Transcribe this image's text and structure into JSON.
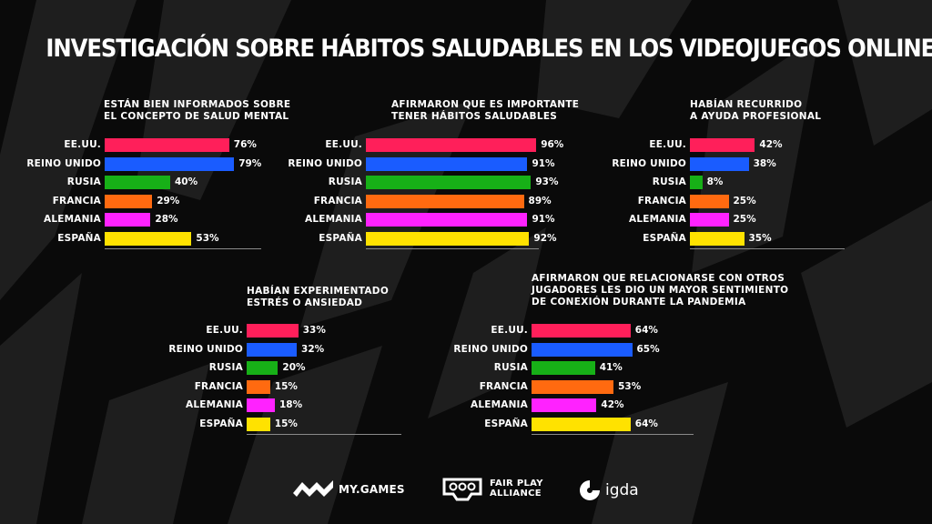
{
  "title": "INVESTIGACIÓN SOBRE HÁBITOS SALUDABLES EN LOS VIDEOJUEGOS ONLINE",
  "colors": {
    "usa": "#ff1f5a",
    "uk": "#1a5cff",
    "russia": "#17b017",
    "france": "#ff6a10",
    "germany": "#ff22ff",
    "spain": "#ffe200",
    "background": "#0a0a0a"
  },
  "chart_data": [
    {
      "type": "bar",
      "title": "ESTÁN BIEN INFORMADOS SOBRE\nEL CONCEPTO DE SALUD MENTAL",
      "categories": [
        "EE.UU.",
        "REINO UNIDO",
        "RUSIA",
        "FRANCIA",
        "ALEMANIA",
        "ESPAÑA"
      ],
      "values": [
        76,
        79,
        40,
        29,
        28,
        53
      ],
      "labels": [
        "76%",
        "79%",
        "40%",
        "29%",
        "28%",
        "53%"
      ],
      "orientation": "horizontal"
    },
    {
      "type": "bar",
      "title": "AFIRMARON QUE ES IMPORTANTE\nTENER HÁBITOS SALUDABLES",
      "categories": [
        "EE.UU.",
        "REINO UNIDO",
        "RUSIA",
        "FRANCIA",
        "ALEMANIA",
        "ESPAÑA"
      ],
      "values": [
        96,
        91,
        93,
        89,
        91,
        92
      ],
      "labels": [
        "96%",
        "91%",
        "93%",
        "89%",
        "91%",
        "92%"
      ],
      "orientation": "horizontal"
    },
    {
      "type": "bar",
      "title": "HABÍAN RECURRIDO\nA AYUDA PROFESIONAL",
      "categories": [
        "EE.UU.",
        "REINO UNIDO",
        "RUSIA",
        "FRANCIA",
        "ALEMANIA",
        "ESPAÑA"
      ],
      "values": [
        42,
        38,
        8,
        25,
        25,
        35
      ],
      "labels": [
        "42%",
        "38%",
        "8%",
        "25%",
        "25%",
        "35%"
      ],
      "orientation": "horizontal"
    },
    {
      "type": "bar",
      "title": "HABÍAN EXPERIMENTADO\nESTRÉS O ANSIEDAD",
      "categories": [
        "EE.UU.",
        "REINO UNIDO",
        "RUSIA",
        "FRANCIA",
        "ALEMANIA",
        "ESPAÑA"
      ],
      "values": [
        33,
        32,
        20,
        15,
        18,
        15
      ],
      "labels": [
        "33%",
        "32%",
        "20%",
        "15%",
        "18%",
        "15%"
      ],
      "orientation": "horizontal"
    },
    {
      "type": "bar",
      "title": "AFIRMARON QUE RELACIONARSE CON OTROS\nJUGADORES LES DIO UN MAYOR SENTIMIENTO\nDE CONEXIÓN DURANTE LA PANDEMIA",
      "categories": [
        "EE.UU.",
        "REINO UNIDO",
        "RUSIA",
        "FRANCIA",
        "ALEMANIA",
        "ESPAÑA"
      ],
      "values": [
        64,
        65,
        41,
        53,
        42,
        64
      ],
      "labels": [
        "64%",
        "65%",
        "41%",
        "53%",
        "42%",
        "64%"
      ],
      "orientation": "horizontal"
    }
  ],
  "logos": {
    "mygames": "MY.GAMES",
    "fairplay_1": "FAIR PLAY",
    "fairplay_2": "ALLIANCE",
    "igda": "igda",
    "mygames_icon": "my-games-icon",
    "fairplay_icon": "controller-icon",
    "igda_icon": "igda-icon"
  }
}
